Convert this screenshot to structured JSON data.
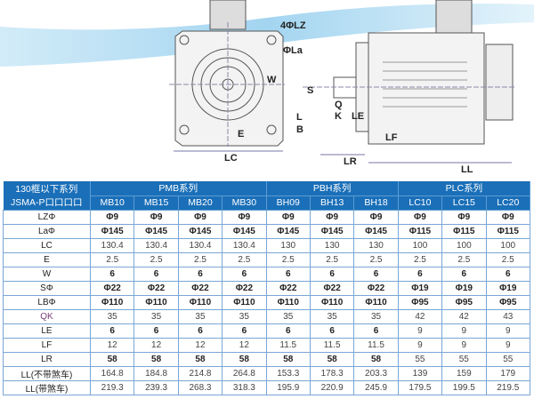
{
  "diagram": {
    "labels": {
      "lz": "4ΦLZ",
      "la": "ΦLa",
      "w": "W",
      "e": "E",
      "lc": "LC",
      "s": "S",
      "q": "Q",
      "k": "K",
      "l": "L",
      "b": "B",
      "le": "LE",
      "lf": "LF",
      "lr": "LR",
      "ll": "LL"
    },
    "accent_color": "#1a6fb8"
  },
  "table": {
    "corner": [
      "130框以下系列",
      "JSMA-P口口口口"
    ],
    "groups": [
      {
        "label": "PMB系列",
        "models": [
          "MB10",
          "MB15",
          "MB20",
          "MB30"
        ]
      },
      {
        "label": "PBH系列",
        "models": [
          "BH09",
          "BH13",
          "BH18"
        ]
      },
      {
        "label": "PLC系列",
        "models": [
          "LC10",
          "LC15",
          "LC20"
        ]
      }
    ],
    "rows": [
      {
        "label": "LZΦ",
        "values": [
          "Φ9",
          "Φ9",
          "Φ9",
          "Φ9",
          "Φ9",
          "Φ9",
          "Φ9",
          "Φ9",
          "Φ9",
          "Φ9"
        ]
      },
      {
        "label": "LaΦ",
        "values": [
          "Φ145",
          "Φ145",
          "Φ145",
          "Φ145",
          "Φ145",
          "Φ145",
          "Φ145",
          "Φ115",
          "Φ115",
          "Φ115"
        ]
      },
      {
        "label": "LC",
        "values": [
          "130.4",
          "130.4",
          "130.4",
          "130.4",
          "130",
          "130",
          "130",
          "100",
          "100",
          "100"
        ]
      },
      {
        "label": "E",
        "values": [
          "2.5",
          "2.5",
          "2.5",
          "2.5",
          "2.5",
          "2.5",
          "2.5",
          "2.5",
          "2.5",
          "2.5"
        ]
      },
      {
        "label": "W",
        "values": [
          "6",
          "6",
          "6",
          "6",
          "6",
          "6",
          "6",
          "6",
          "6",
          "6"
        ]
      },
      {
        "label": "SΦ",
        "values": [
          "Φ22",
          "Φ22",
          "Φ22",
          "Φ22",
          "Φ22",
          "Φ22",
          "Φ22",
          "Φ19",
          "Φ19",
          "Φ19"
        ]
      },
      {
        "label": "LBΦ",
        "values": [
          "Φ110",
          "Φ110",
          "Φ110",
          "Φ110",
          "Φ110",
          "Φ110",
          "Φ110",
          "Φ95",
          "Φ95",
          "Φ95"
        ]
      },
      {
        "label": "QK",
        "values": [
          "35",
          "35",
          "35",
          "35",
          "35",
          "35",
          "35",
          "42",
          "42",
          "43"
        ]
      },
      {
        "label": "LE",
        "values": [
          "6",
          "6",
          "6",
          "6",
          "6",
          "6",
          "6",
          "9",
          "9",
          "9"
        ]
      },
      {
        "label": "LF",
        "values": [
          "12",
          "12",
          "12",
          "12",
          "11.5",
          "11.5",
          "11.5",
          "9",
          "9",
          "9"
        ]
      },
      {
        "label": "LR",
        "values": [
          "58",
          "58",
          "58",
          "58",
          "58",
          "58",
          "58",
          "55",
          "55",
          "55"
        ]
      },
      {
        "label": "LL(不带煞车)",
        "values": [
          "164.8",
          "184.8",
          "214.8",
          "264.8",
          "153.3",
          "178.3",
          "203.3",
          "139",
          "159",
          "179"
        ]
      },
      {
        "label": "LL(带煞车)",
        "values": [
          "219.3",
          "239.3",
          "268.3",
          "318.3",
          "195.9",
          "220.9",
          "245.9",
          "179.5",
          "199.5",
          "219.5"
        ]
      }
    ]
  }
}
